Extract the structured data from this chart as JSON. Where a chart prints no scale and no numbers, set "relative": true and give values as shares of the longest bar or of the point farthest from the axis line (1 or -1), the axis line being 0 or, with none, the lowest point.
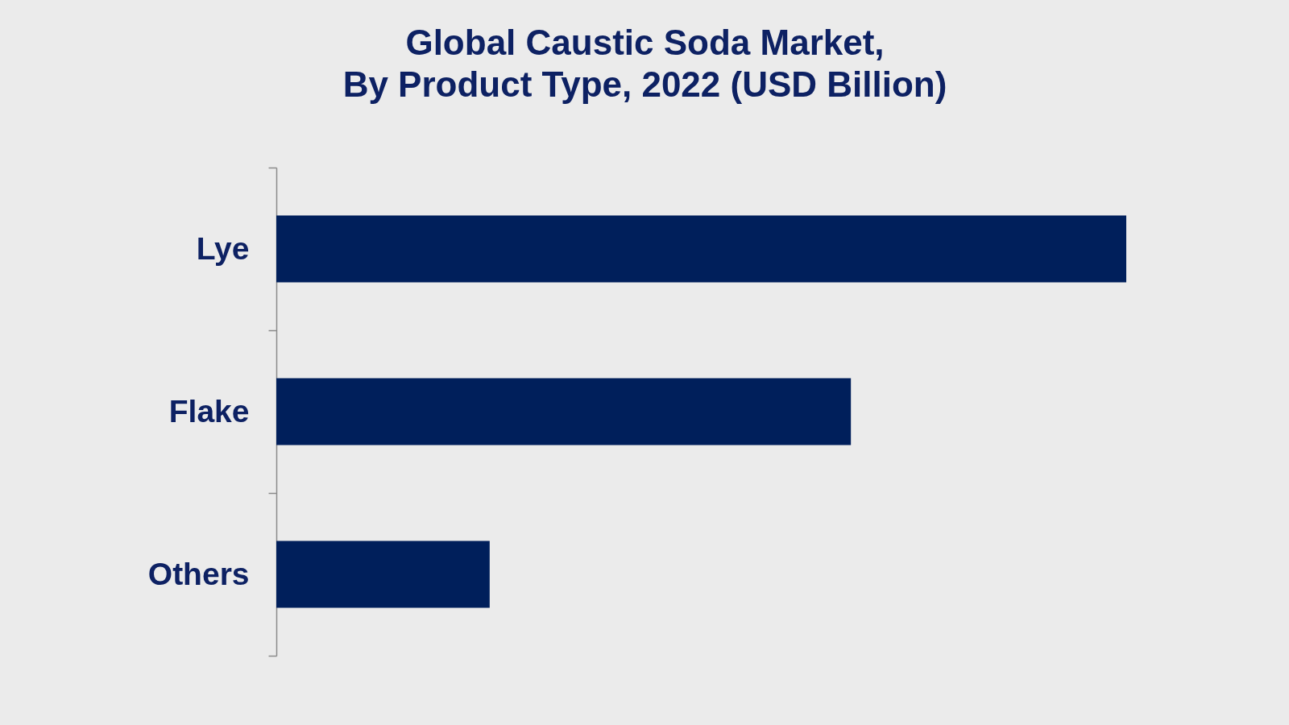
{
  "chart_data": {
    "type": "bar",
    "orientation": "horizontal",
    "relative": true,
    "title": "Global Caustic Soda Market,\nBy Product Type, 2022 (USD Billion)",
    "categories": [
      "Lye",
      "Flake",
      "Others"
    ],
    "values": [
      1,
      0.676,
      0.251
    ],
    "color": "#001f5b"
  }
}
